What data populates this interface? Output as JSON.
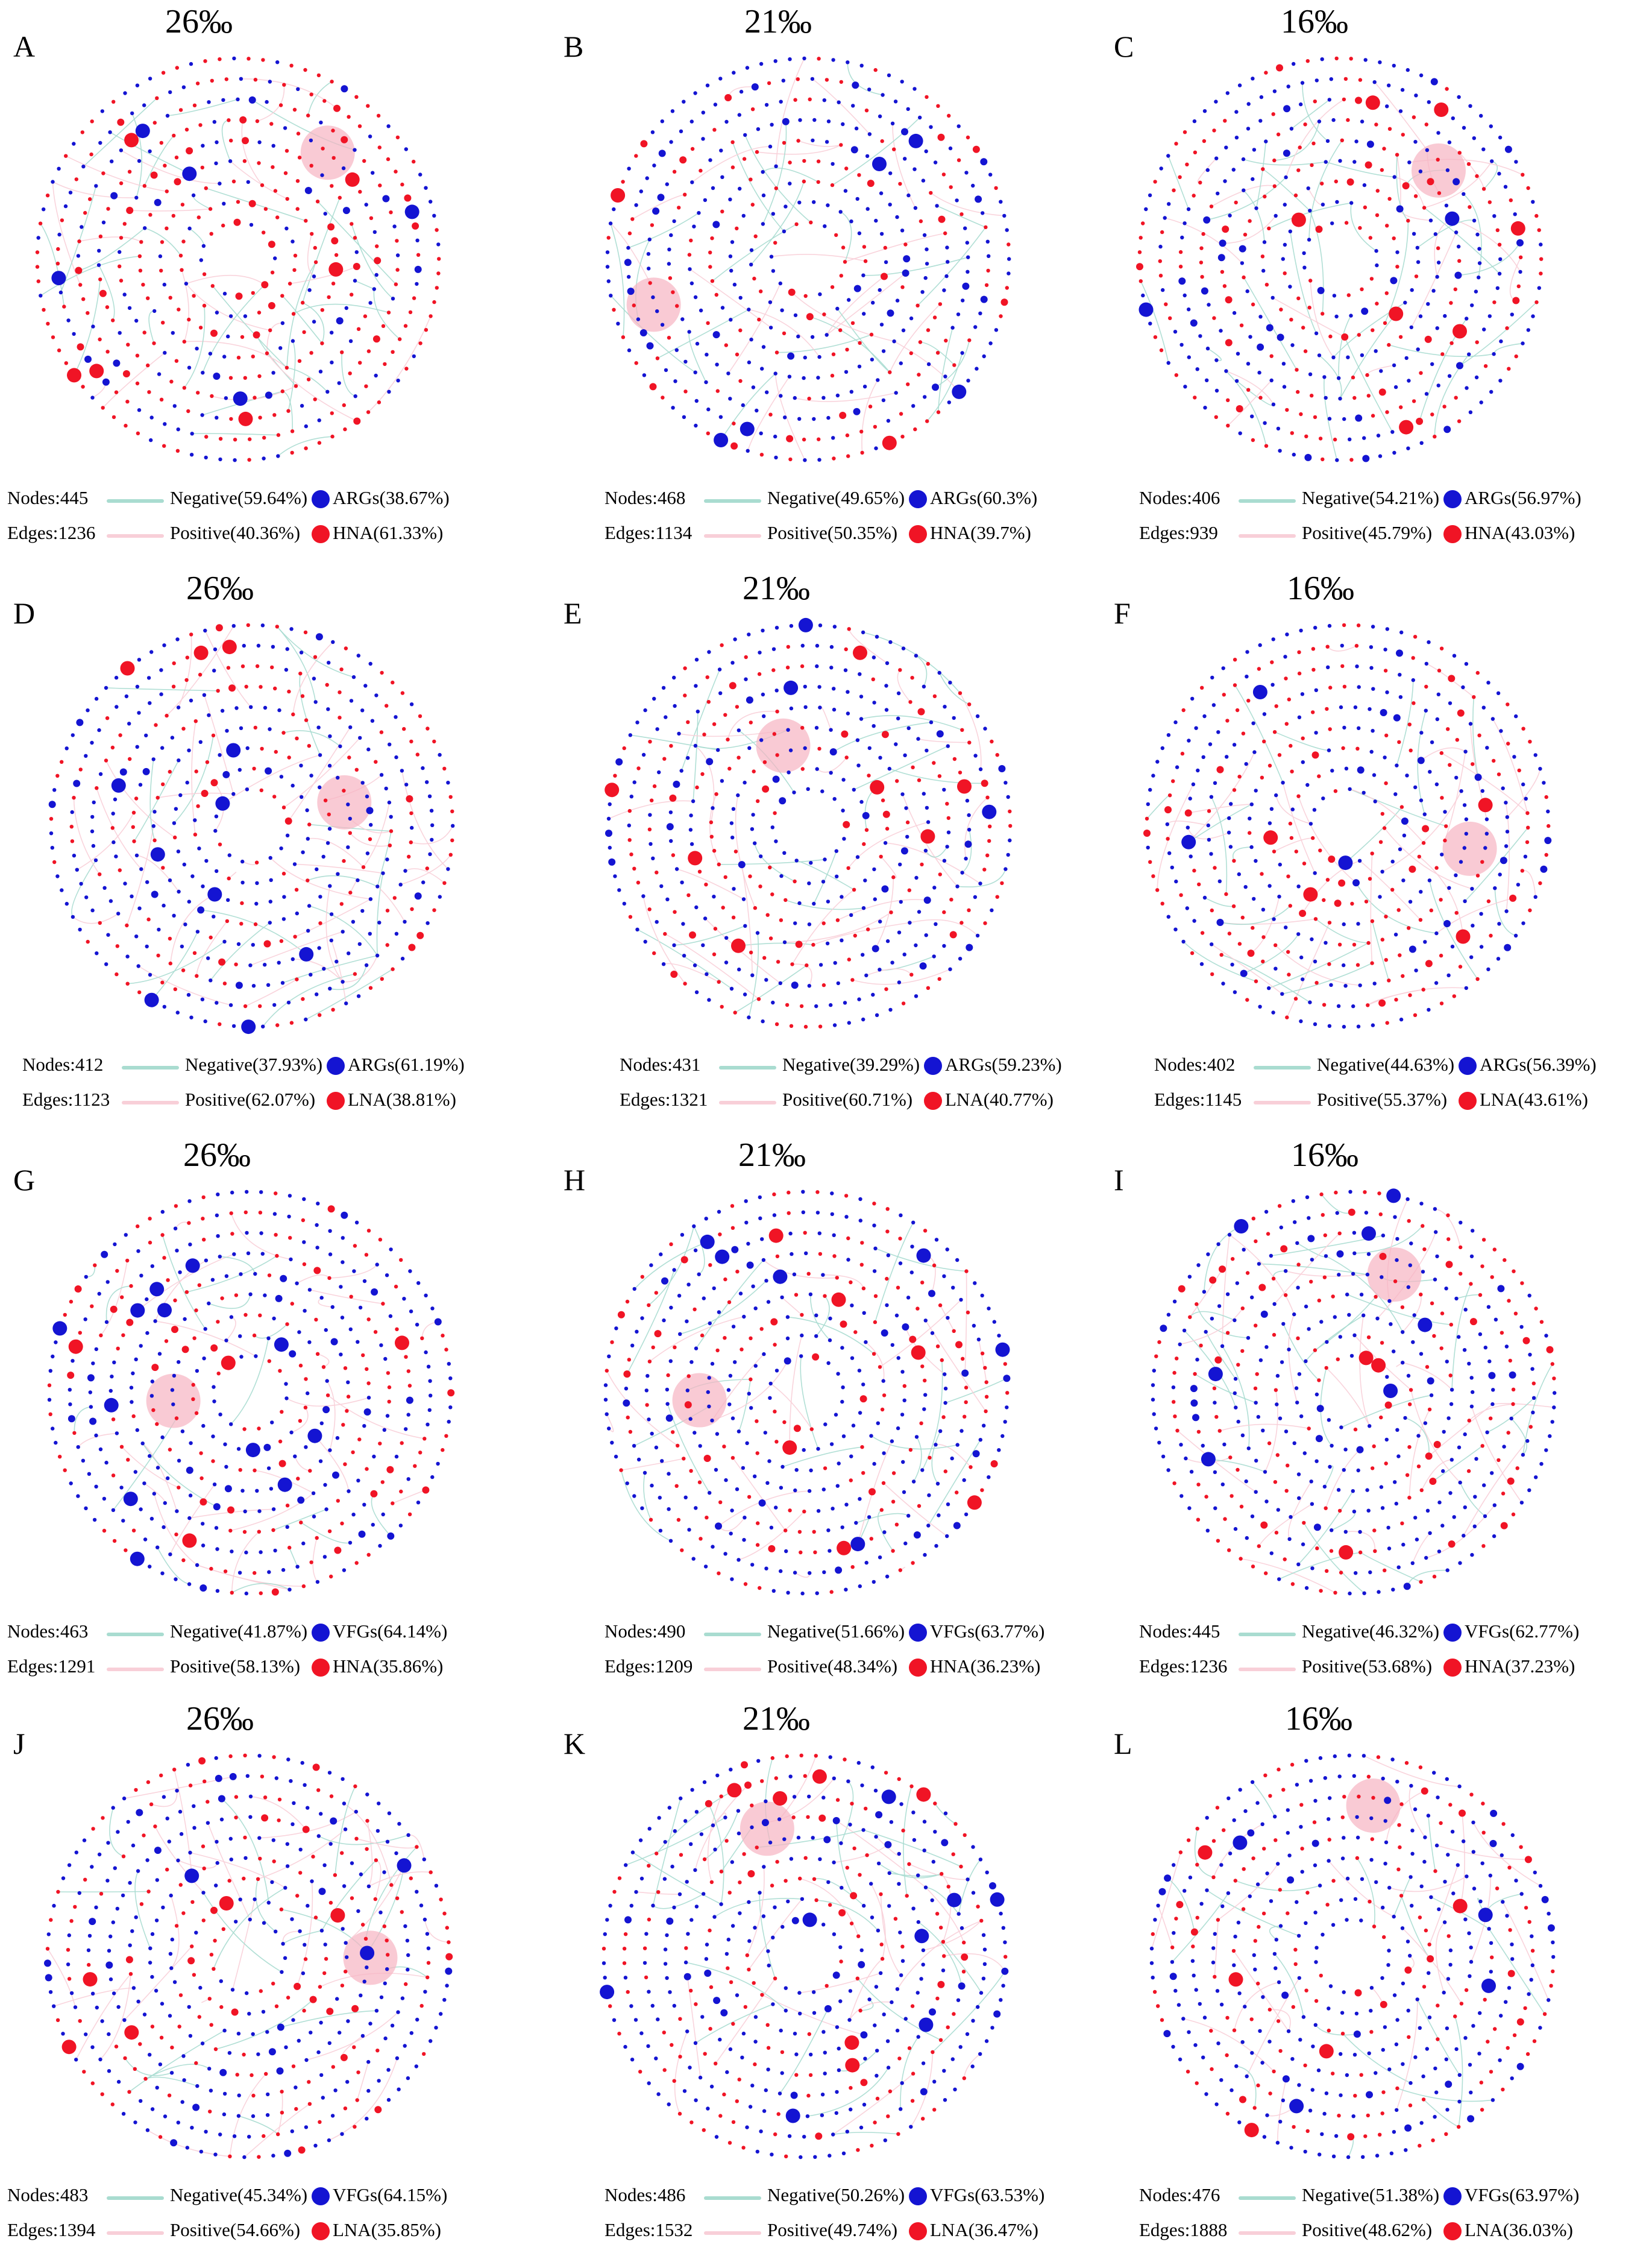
{
  "colors": {
    "negative_edge": "#a9dcd0",
    "positive_edge": "#f8cfd8",
    "gene_node": "#1414d2",
    "bacteria_node": "#f01425",
    "cluster_fill": "#f7b3c2"
  },
  "panels": [
    {
      "letter": "A",
      "salinity": "26‰",
      "nodes": "Nodes:445",
      "edges": "Edges:1236",
      "negative": "Negative(59.64%)",
      "positive": "Positive(40.36%)",
      "gene": "ARGs(38.67%)",
      "bacteria": "HNA(61.33%)",
      "gene_frac": 0.3867,
      "neg_frac": 0.5964
    },
    {
      "letter": "B",
      "salinity": "21‰",
      "nodes": "Nodes:468",
      "edges": "Edges:1134",
      "negative": "Negative(49.65%)",
      "positive": "Positive(50.35%)",
      "gene": "ARGs(60.3%)",
      "bacteria": "HNA(39.7%)",
      "gene_frac": 0.603,
      "neg_frac": 0.4965
    },
    {
      "letter": "C",
      "salinity": "16‰",
      "nodes": "Nodes:406",
      "edges": "Edges:939",
      "negative": "Negative(54.21%)",
      "positive": "Positive(45.79%)",
      "gene": "ARGs(56.97%)",
      "bacteria": "HNA(43.03%)",
      "gene_frac": 0.5697,
      "neg_frac": 0.5421
    },
    {
      "letter": "D",
      "salinity": "26‰",
      "nodes": "Nodes:412",
      "edges": "Edges:1123",
      "negative": "Negative(37.93%)",
      "positive": "Positive(62.07%)",
      "gene": "ARGs(61.19%)",
      "bacteria": "LNA(38.81%)",
      "gene_frac": 0.6119,
      "neg_frac": 0.3793
    },
    {
      "letter": "E",
      "salinity": "21‰",
      "nodes": "Nodes:431",
      "edges": "Edges:1321",
      "negative": "Negative(39.29%)",
      "positive": "Positive(60.71%)",
      "gene": "ARGs(59.23%)",
      "bacteria": "LNA(40.77%)",
      "gene_frac": 0.5923,
      "neg_frac": 0.3929
    },
    {
      "letter": "F",
      "salinity": "16‰",
      "nodes": "Nodes:402",
      "edges": "Edges:1145",
      "negative": "Negative(44.63%)",
      "positive": "Positive(55.37%)",
      "gene": "ARGs(56.39%)",
      "bacteria": "LNA(43.61%)",
      "gene_frac": 0.5639,
      "neg_frac": 0.4463
    },
    {
      "letter": "G",
      "salinity": "26‰",
      "nodes": "Nodes:463",
      "edges": "Edges:1291",
      "negative": "Negative(41.87%)",
      "positive": "Positive(58.13%)",
      "gene": "VFGs(64.14%)",
      "bacteria": "HNA(35.86%)",
      "gene_frac": 0.6414,
      "neg_frac": 0.4187
    },
    {
      "letter": "H",
      "salinity": "21‰",
      "nodes": "Nodes:490",
      "edges": "Edges:1209",
      "negative": "Negative(51.66%)",
      "positive": "Positive(48.34%)",
      "gene": "VFGs(63.77%)",
      "bacteria": "HNA(36.23%)",
      "gene_frac": 0.6377,
      "neg_frac": 0.5166
    },
    {
      "letter": "I",
      "salinity": "16‰",
      "nodes": "Nodes:445",
      "edges": "Edges:1236",
      "negative": "Negative(46.32%)",
      "positive": "Positive(53.68%)",
      "gene": "VFGs(62.77%)",
      "bacteria": "HNA(37.23%)",
      "gene_frac": 0.6277,
      "neg_frac": 0.4632
    },
    {
      "letter": "J",
      "salinity": "26‰",
      "nodes": "Nodes:483",
      "edges": "Edges:1394",
      "negative": "Negative(45.34%)",
      "positive": "Positive(54.66%)",
      "gene": "VFGs(64.15%)",
      "bacteria": "LNA(35.85%)",
      "gene_frac": 0.6415,
      "neg_frac": 0.4534
    },
    {
      "letter": "K",
      "salinity": "21‰",
      "nodes": "Nodes:486",
      "edges": "Edges:1532",
      "negative": "Negative(50.26%)",
      "positive": "Positive(49.74%)",
      "gene": "VFGs(63.53%)",
      "bacteria": "LNA(36.47%)",
      "gene_frac": 0.6353,
      "neg_frac": 0.5026
    },
    {
      "letter": "L",
      "salinity": "16‰",
      "nodes": "Nodes:476",
      "edges": "Edges:1888",
      "negative": "Negative(51.38%)",
      "positive": "Positive(48.62%)",
      "gene": "VFGs(63.97%)",
      "bacteria": "LNA(36.03%)",
      "gene_frac": 0.6397,
      "neg_frac": 0.5138
    }
  ]
}
